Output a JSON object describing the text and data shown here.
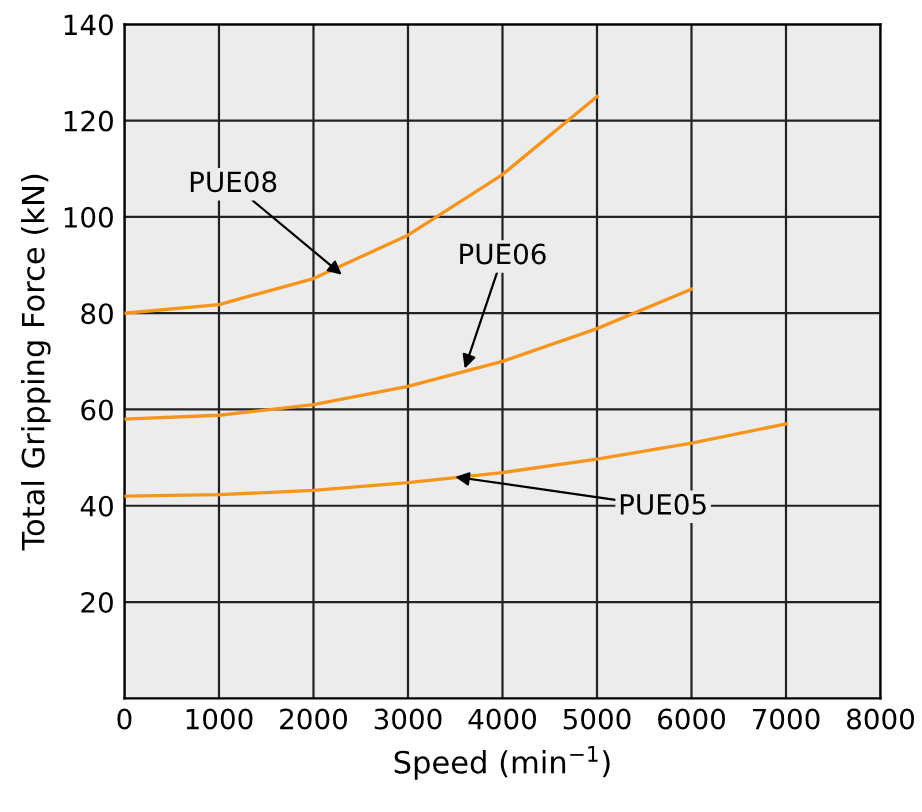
{
  "chart_data": {
    "type": "line",
    "xlabel": "Speed (min$^{−1}$)",
    "ylabel": "Total Gripping Force (kN)",
    "xlim": [
      0,
      8000
    ],
    "xticks": [
      0,
      1000,
      2000,
      3000,
      4000,
      5000,
      6000,
      7000,
      8000
    ],
    "ylim": [
      0,
      140
    ],
    "yticks": [
      20,
      40,
      60,
      80,
      100,
      120,
      140
    ],
    "grid": true,
    "marker": "none",
    "line_style": "solid",
    "series": [
      {
        "color": "#f7941d",
        "x": [
          0,
          1000,
          2000,
          3000,
          4000,
          5000
        ],
        "values": [
          80,
          81.8,
          87.2,
          96.2,
          108.8,
          125
        ]
      },
      {
        "color": "#f7941d",
        "x": [
          0,
          1000,
          2000,
          3000,
          4000,
          5000,
          6000
        ],
        "values": [
          58,
          58.8,
          61,
          64.8,
          70,
          76.8,
          85
        ]
      },
      {
        "color": "#f7941d",
        "x": [
          0,
          1000,
          2000,
          3000,
          4000,
          5000,
          6000,
          7000
        ],
        "values": [
          42,
          42.3,
          43.2,
          44.8,
          46.9,
          49.7,
          53,
          57
        ]
      }
    ],
    "annotations": [
      {
        "text": "PUE08",
        "x": 2300,
        "y": 88
      },
      {
        "text": "PUE06",
        "x": 3600,
        "y": 68.5
      },
      {
        "text": "PUE05",
        "x": 3500,
        "y": 46
      }
    ]
  }
}
